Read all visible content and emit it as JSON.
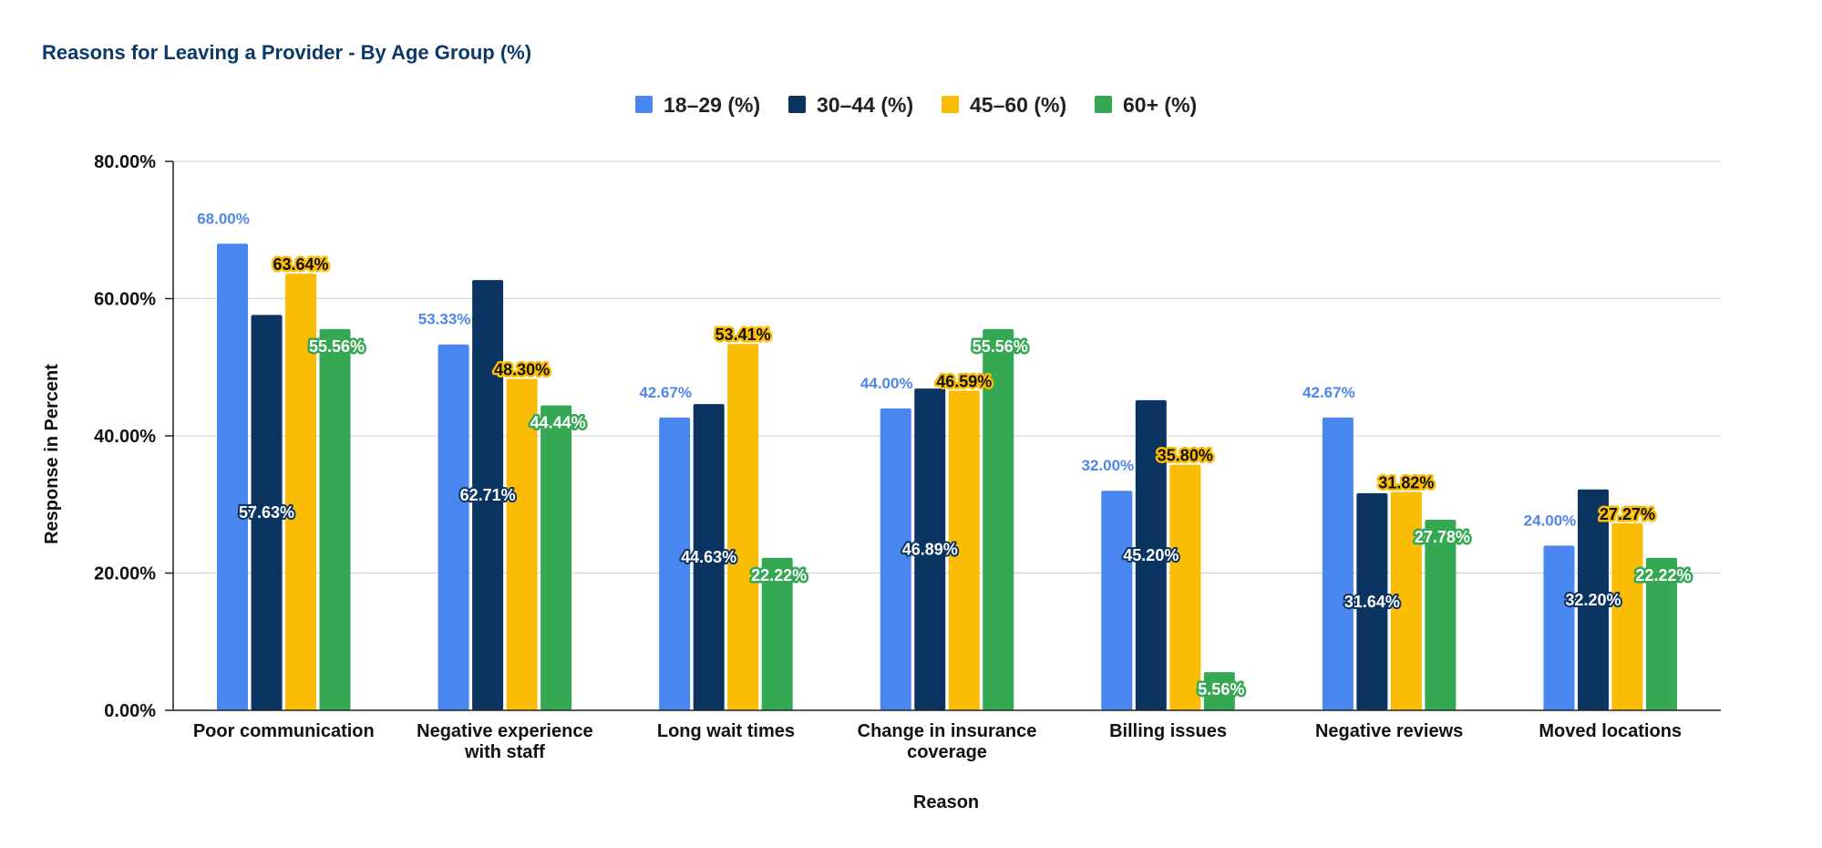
{
  "chart_data": {
    "type": "bar",
    "title": "Reasons for Leaving a Provider - By Age Group (%)",
    "xlabel": "Reason",
    "ylabel": "Response in Percent",
    "ylim": [
      0,
      80
    ],
    "yticks": [
      "0.00%",
      "20.00%",
      "40.00%",
      "60.00%",
      "80.00%"
    ],
    "ytick_values": [
      0,
      20,
      40,
      60,
      80
    ],
    "legend_position": "top-center",
    "grid": true,
    "categories": [
      [
        "Poor communication"
      ],
      [
        "Negative experience",
        "with staff"
      ],
      [
        "Long wait times"
      ],
      [
        "Change in insurance",
        "coverage"
      ],
      [
        "Billing issues"
      ],
      [
        "Negative reviews"
      ],
      [
        "Moved locations"
      ]
    ],
    "series": [
      {
        "name": "18–29 (%)",
        "color": "#4a86f0",
        "values": [
          68.0,
          53.33,
          42.67,
          44.0,
          32.0,
          42.67,
          24.0
        ],
        "labels": [
          "68.00%",
          "53.33%",
          "42.67%",
          "44.00%",
          "32.00%",
          "42.67%",
          "24.00%"
        ]
      },
      {
        "name": "30–44 (%)",
        "color": "#0b3460",
        "values": [
          57.63,
          62.71,
          44.63,
          46.89,
          45.2,
          31.64,
          32.2
        ],
        "labels": [
          "57.63%",
          "62.71%",
          "44.63%",
          "46.89%",
          "45.20%",
          "31.64%",
          "32.20%"
        ]
      },
      {
        "name": "45–60 (%)",
        "color": "#fbbc05",
        "values": [
          63.64,
          48.3,
          53.41,
          46.59,
          35.8,
          31.82,
          27.27
        ],
        "labels": [
          "63.64%",
          "48.30%",
          "53.41%",
          "46.59%",
          "35.80%",
          "31.82%",
          "27.27%"
        ]
      },
      {
        "name": "60+ (%)",
        "color": "#34a853",
        "values": [
          55.56,
          44.44,
          22.22,
          55.56,
          5.56,
          27.78,
          22.22
        ],
        "labels": [
          "55.56%",
          "44.44%",
          "22.22%",
          "55.56%",
          "5.56%",
          "27.78%",
          "22.22%"
        ]
      }
    ]
  }
}
